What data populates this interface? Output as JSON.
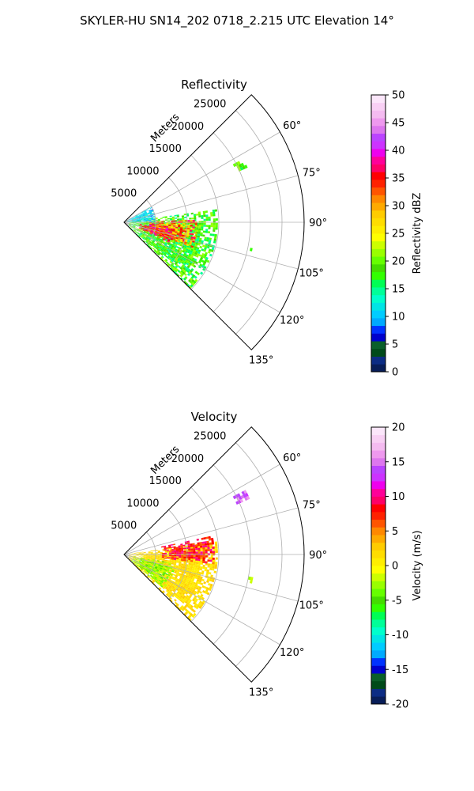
{
  "figure": {
    "suptitle": "SKYLER-HU  SN14_202  0718_2.215 UTC Elevation 14°"
  },
  "chart_data": [
    {
      "type": "heatmap",
      "subtype": "polar-sector",
      "title": "Reflectivity",
      "radial_label": "Meters",
      "r_ticks": [
        "5000",
        "10000",
        "15000",
        "20000",
        "25000"
      ],
      "r_values": [
        5000,
        10000,
        15000,
        20000,
        25000
      ],
      "rmax": 28500,
      "theta_range": [
        45,
        135
      ],
      "theta_ticks": [
        "60°",
        "75°",
        "90°",
        "105°",
        "120°",
        "135°"
      ],
      "theta_values": [
        60,
        75,
        90,
        105,
        120,
        135
      ],
      "grid": true,
      "colorbar": {
        "label": "Reflectivity dBZ",
        "min": 0,
        "max": 50,
        "ticks": [
          "0",
          "5",
          "10",
          "15",
          "20",
          "25",
          "30",
          "35",
          "40",
          "45",
          "50"
        ],
        "tick_values": [
          0,
          5,
          10,
          15,
          20,
          25,
          30,
          35,
          40,
          45,
          50
        ],
        "colors": [
          "#081d58",
          "#0c2c84",
          "#004a1a",
          "#0a5f2a",
          "#0000cc",
          "#0033ff",
          "#00aaff",
          "#00ccff",
          "#00e5e5",
          "#00ffcc",
          "#00ff99",
          "#00ff55",
          "#33ff00",
          "#44dd00",
          "#66ff00",
          "#99ff00",
          "#ccff00",
          "#ffff00",
          "#ffee00",
          "#ffdd00",
          "#ffcc00",
          "#ffaa00",
          "#ff8800",
          "#ff5500",
          "#ff2200",
          "#ff0000",
          "#ff0066",
          "#ff0099",
          "#ee00ee",
          "#cc33ff",
          "#bb44ff",
          "#dd77ee",
          "#ee99ee",
          "#f4bbf0",
          "#f8d0f4",
          "#fbe6fa"
        ]
      },
      "echo_regions": [
        {
          "theta": [
            82,
            138
          ],
          "r": [
            800,
            14500
          ],
          "value": [
            14,
            22
          ]
        },
        {
          "theta": [
            88,
            110
          ],
          "r": [
            4000,
            11500
          ],
          "value": [
            25,
            38
          ]
        },
        {
          "theta": [
            96,
            114
          ],
          "r": [
            2500,
            7500
          ],
          "value": [
            30,
            40
          ]
        },
        {
          "theta": [
            62,
            66
          ],
          "r": [
            19500,
            21500
          ],
          "value": [
            16,
            22
          ]
        },
        {
          "theta": [
            100,
            102
          ],
          "r": [
            20000,
            20600
          ],
          "value": [
            15,
            20
          ]
        },
        {
          "theta": [
            60,
            90
          ],
          "r": [
            500,
            5000
          ],
          "value": [
            8,
            14
          ]
        }
      ]
    },
    {
      "type": "heatmap",
      "subtype": "polar-sector",
      "title": "Velocity",
      "radial_label": "Meters",
      "r_ticks": [
        "5000",
        "10000",
        "15000",
        "20000",
        "25000"
      ],
      "r_values": [
        5000,
        10000,
        15000,
        20000,
        25000
      ],
      "rmax": 28500,
      "theta_range": [
        45,
        135
      ],
      "theta_ticks": [
        "60°",
        "75°",
        "90°",
        "105°",
        "120°",
        "135°"
      ],
      "theta_values": [
        60,
        75,
        90,
        105,
        120,
        135
      ],
      "grid": true,
      "colorbar": {
        "label": "Velocity (m/s)",
        "min": -20,
        "max": 20,
        "ticks": [
          "-20",
          "-15",
          "-10",
          "-5",
          "0",
          "5",
          "10",
          "15",
          "20"
        ],
        "tick_values": [
          -20,
          -15,
          -10,
          -5,
          0,
          5,
          10,
          15,
          20
        ],
        "colors": [
          "#081d58",
          "#0c2c84",
          "#004a1a",
          "#0a5f2a",
          "#0000cc",
          "#0033ff",
          "#00aaff",
          "#00ccff",
          "#00e5e5",
          "#00ffcc",
          "#00ff99",
          "#00ff55",
          "#33ff00",
          "#44dd00",
          "#66ff00",
          "#99ff00",
          "#ccff00",
          "#ffff00",
          "#ffee00",
          "#ffdd00",
          "#ffcc00",
          "#ffaa00",
          "#ff8800",
          "#ff5500",
          "#ff2200",
          "#ff0000",
          "#ff0066",
          "#ff0099",
          "#ee00ee",
          "#cc33ff",
          "#bb44ff",
          "#dd77ee",
          "#ee99ee",
          "#f4bbf0",
          "#f8d0f4",
          "#fbe6fa"
        ]
      },
      "echo_regions": [
        {
          "theta": [
            82,
            138
          ],
          "r": [
            800,
            14500
          ],
          "value": [
            0,
            3
          ]
        },
        {
          "theta": [
            78,
            95
          ],
          "r": [
            6000,
            14000
          ],
          "value": [
            5,
            11
          ]
        },
        {
          "theta": [
            100,
            130
          ],
          "r": [
            1500,
            8000
          ],
          "value": [
            -5,
            -1
          ]
        },
        {
          "theta": [
            62,
            66
          ],
          "r": [
            19500,
            21500
          ],
          "value": [
            13,
            16
          ]
        },
        {
          "theta": [
            100,
            102
          ],
          "r": [
            20000,
            20600
          ],
          "value": [
            -3,
            -1
          ]
        }
      ]
    }
  ]
}
